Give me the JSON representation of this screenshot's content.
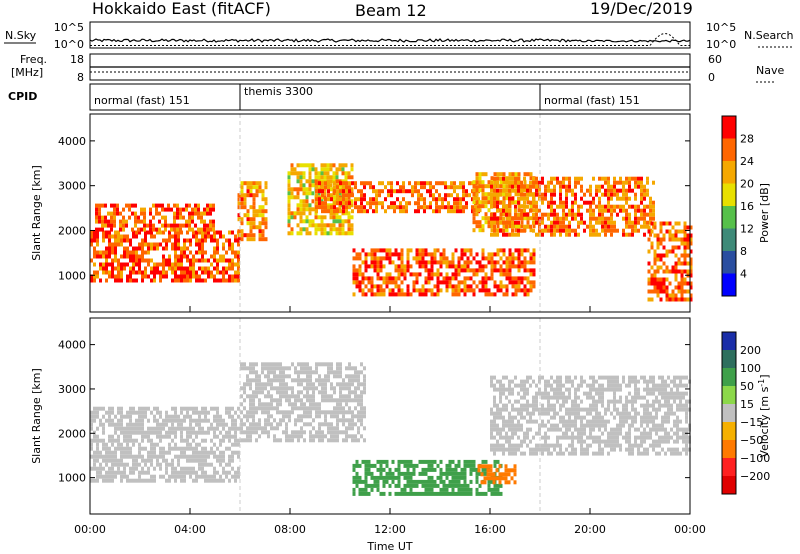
{
  "header": {
    "radar": "Hokkaido East (fitACF)",
    "beam": "Beam 12",
    "date": "19/Dec/2019"
  },
  "top_panel": {
    "nsky_label": "N.Sky",
    "nsearch_label": "N.Search",
    "nsky_ticks": [
      "10^5",
      "10^0"
    ],
    "nsearch_ticks": [
      "10^5",
      "10^0"
    ],
    "freq_label_1": "Freq.",
    "freq_label_2": "[MHz]",
    "freq_ticks": [
      "18",
      "8"
    ],
    "nave_label": "Nave",
    "nave_ticks": [
      "60",
      "0"
    ],
    "cpid_label": "CPID",
    "cpid_segments": [
      {
        "label": "normal (fast) 151",
        "start_hour": 0,
        "end_hour": 6
      },
      {
        "label": "themis 3300",
        "start_hour": 6,
        "end_hour": 18
      },
      {
        "label": "normal (fast) 151",
        "start_hour": 18,
        "end_hour": 24
      }
    ]
  },
  "chart_data": [
    {
      "type": "heatmap",
      "name": "power",
      "xlabel": "",
      "ylabel": "Slant Range [km]",
      "xlim": [
        0,
        24
      ],
      "ylim": [
        180,
        4600
      ],
      "yticks": [
        1000,
        2000,
        3000,
        4000
      ],
      "colorbar_label": "Power [dB]",
      "colorbar_range": [
        0,
        32
      ],
      "colorbar_ticks": [
        4,
        8,
        12,
        16,
        20,
        24,
        28
      ],
      "colorbar_colors": [
        "#0000ff",
        "#2a4ea0",
        "#3e8a78",
        "#56c04a",
        "#e8e000",
        "#f5a800",
        "#ff6600",
        "#ff0000"
      ],
      "echo_regions": [
        {
          "t0": 0.0,
          "t1": 5.9,
          "r0": 900,
          "r1": 2000,
          "value": 27
        },
        {
          "t0": 0.2,
          "t1": 5.0,
          "r0": 2000,
          "r1": 2600,
          "value": 26
        },
        {
          "t0": 5.9,
          "t1": 7.0,
          "r0": 1800,
          "r1": 3100,
          "value": 24
        },
        {
          "t0": 7.9,
          "t1": 10.5,
          "r0": 1900,
          "r1": 3500,
          "value": 20
        },
        {
          "t0": 9.0,
          "t1": 15.5,
          "r0": 2400,
          "r1": 3100,
          "value": 26
        },
        {
          "t0": 10.5,
          "t1": 17.8,
          "r0": 600,
          "r1": 1600,
          "value": 27
        },
        {
          "t0": 15.3,
          "t1": 17.8,
          "r0": 2000,
          "r1": 3300,
          "value": 23
        },
        {
          "t0": 16.0,
          "t1": 22.5,
          "r0": 1900,
          "r1": 3200,
          "value": 25
        },
        {
          "t0": 22.3,
          "t1": 24.0,
          "r0": 500,
          "r1": 2200,
          "value": 26
        }
      ]
    },
    {
      "type": "heatmap",
      "name": "velocity",
      "xlabel": "Time UT",
      "ylabel": "Slant Range [km]",
      "xlim": [
        0,
        24
      ],
      "ylim": [
        180,
        4600
      ],
      "yticks": [
        1000,
        2000,
        3000,
        4000
      ],
      "xtick_labels": [
        "00:00",
        "04:00",
        "08:00",
        "12:00",
        "16:00",
        "20:00",
        "00:00"
      ],
      "colorbar_label": "Velocity [m s^-1]",
      "colorbar_ticks": [
        "200",
        "100",
        "50",
        "15",
        "-15",
        "-50",
        "-100",
        "-200"
      ],
      "colorbar_colors": [
        "#1a2ea8",
        "#2e6f5e",
        "#3fa04a",
        "#8cd84a",
        "#c0c0c0",
        "#f5b000",
        "#ff7a00",
        "#ff2020",
        "#e00000"
      ],
      "echo_regions": [
        {
          "t0": 0.0,
          "t1": 6.0,
          "r0": 900,
          "r1": 2600,
          "value": -5
        },
        {
          "t0": 6.0,
          "t1": 11.0,
          "r0": 1800,
          "r1": 3600,
          "value": 0
        },
        {
          "t0": 10.5,
          "t1": 16.5,
          "r0": 600,
          "r1": 1400,
          "value": 60
        },
        {
          "t0": 15.5,
          "t1": 17.0,
          "r0": 850,
          "r1": 1300,
          "value": -60
        },
        {
          "t0": 16.0,
          "t1": 24.0,
          "r0": 1500,
          "r1": 3300,
          "value": 5
        }
      ]
    }
  ]
}
